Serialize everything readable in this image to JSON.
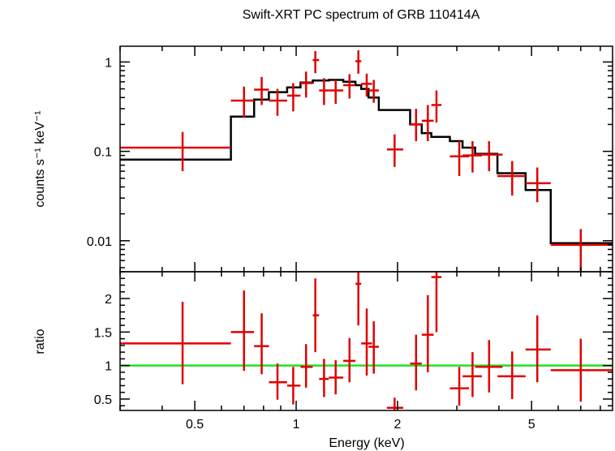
{
  "title": "Swift-XRT PC spectrum of GRB 110414A",
  "chart_data": [
    {
      "type": "scatter",
      "panel": "spectrum",
      "xlabel": "Energy (keV)",
      "ylabel": "counts s⁻¹ keV⁻¹",
      "xscale": "log",
      "yscale": "log",
      "xlim": [
        0.3,
        8.7
      ],
      "ylim": [
        0.0045,
        1.5
      ],
      "yticks": [
        {
          "value": 0.01,
          "label": "0.01"
        },
        {
          "value": 0.1,
          "label": "0.1"
        },
        {
          "value": 1,
          "label": "1"
        }
      ],
      "data_color": "#e00000",
      "model_color": "#000000",
      "series": [
        {
          "kind": "data",
          "points": [
            {
              "x0": 0.3,
              "x1": 0.64,
              "x": 0.46,
              "y": 0.11,
              "ylo": 0.06,
              "yhi": 0.165
            },
            {
              "x0": 0.64,
              "x1": 0.75,
              "x": 0.7,
              "y": 0.37,
              "ylo": 0.24,
              "yhi": 0.53
            },
            {
              "x0": 0.75,
              "x1": 0.83,
              "x": 0.79,
              "y": 0.49,
              "ylo": 0.33,
              "yhi": 0.68
            },
            {
              "x0": 0.83,
              "x1": 0.94,
              "x": 0.88,
              "y": 0.37,
              "ylo": 0.25,
              "yhi": 0.5
            },
            {
              "x0": 0.94,
              "x1": 1.03,
              "x": 0.98,
              "y": 0.42,
              "ylo": 0.28,
              "yhi": 0.58
            },
            {
              "x0": 1.03,
              "x1": 1.12,
              "x": 1.07,
              "y": 0.58,
              "ylo": 0.4,
              "yhi": 0.78
            },
            {
              "x0": 1.12,
              "x1": 1.17,
              "x": 1.14,
              "y": 1.05,
              "ylo": 0.75,
              "yhi": 1.32
            },
            {
              "x0": 1.17,
              "x1": 1.25,
              "x": 1.21,
              "y": 0.48,
              "ylo": 0.33,
              "yhi": 0.66
            },
            {
              "x0": 1.25,
              "x1": 1.38,
              "x": 1.31,
              "y": 0.48,
              "ylo": 0.34,
              "yhi": 0.63
            },
            {
              "x0": 1.38,
              "x1": 1.5,
              "x": 1.44,
              "y": 0.55,
              "ylo": 0.39,
              "yhi": 0.73
            },
            {
              "x0": 1.5,
              "x1": 1.56,
              "x": 1.53,
              "y": 1.02,
              "ylo": 0.74,
              "yhi": 1.35
            },
            {
              "x0": 1.56,
              "x1": 1.68,
              "x": 1.62,
              "y": 0.57,
              "ylo": 0.41,
              "yhi": 0.74
            },
            {
              "x0": 1.64,
              "x1": 1.76,
              "x": 1.7,
              "y": 0.48,
              "ylo": 0.35,
              "yhi": 0.63
            },
            {
              "x0": 1.86,
              "x1": 2.08,
              "x": 1.96,
              "y": 0.105,
              "ylo": 0.067,
              "yhi": 0.155
            },
            {
              "x0": 2.18,
              "x1": 2.36,
              "x": 2.27,
              "y": 0.2,
              "ylo": 0.13,
              "yhi": 0.3
            },
            {
              "x0": 2.36,
              "x1": 2.56,
              "x": 2.46,
              "y": 0.22,
              "ylo": 0.13,
              "yhi": 0.33
            },
            {
              "x0": 2.52,
              "x1": 2.7,
              "x": 2.61,
              "y": 0.33,
              "ylo": 0.21,
              "yhi": 0.48
            },
            {
              "x0": 2.86,
              "x1": 3.26,
              "x": 3.05,
              "y": 0.088,
              "ylo": 0.053,
              "yhi": 0.13
            },
            {
              "x0": 3.12,
              "x1": 3.56,
              "x": 3.34,
              "y": 0.09,
              "ylo": 0.058,
              "yhi": 0.13
            },
            {
              "x0": 3.4,
              "x1": 4.1,
              "x": 3.74,
              "y": 0.092,
              "ylo": 0.06,
              "yhi": 0.13
            },
            {
              "x0": 3.96,
              "x1": 4.8,
              "x": 4.38,
              "y": 0.053,
              "ylo": 0.032,
              "yhi": 0.078
            },
            {
              "x0": 4.8,
              "x1": 5.7,
              "x": 5.2,
              "y": 0.044,
              "ylo": 0.027,
              "yhi": 0.066
            },
            {
              "x0": 5.7,
              "x1": 8.7,
              "x": 7.0,
              "y": 0.009,
              "ylo": 0.0045,
              "yhi": 0.0135
            }
          ]
        },
        {
          "kind": "model",
          "steps": [
            {
              "x0": 0.3,
              "x1": 0.64,
              "y": 0.081
            },
            {
              "x0": 0.64,
              "x1": 0.75,
              "y": 0.245
            },
            {
              "x0": 0.75,
              "x1": 0.83,
              "y": 0.38
            },
            {
              "x0": 0.83,
              "x1": 0.94,
              "y": 0.46
            },
            {
              "x0": 0.94,
              "x1": 1.03,
              "y": 0.52
            },
            {
              "x0": 1.03,
              "x1": 1.12,
              "y": 0.59
            },
            {
              "x0": 1.12,
              "x1": 1.25,
              "y": 0.62
            },
            {
              "x0": 1.25,
              "x1": 1.38,
              "y": 0.63
            },
            {
              "x0": 1.38,
              "x1": 1.5,
              "y": 0.6
            },
            {
              "x0": 1.5,
              "x1": 1.56,
              "y": 0.55
            },
            {
              "x0": 1.56,
              "x1": 1.64,
              "y": 0.5
            },
            {
              "x0": 1.64,
              "x1": 1.76,
              "y": 0.4
            },
            {
              "x0": 1.76,
              "x1": 2.18,
              "y": 0.29
            },
            {
              "x0": 2.18,
              "x1": 2.36,
              "y": 0.2
            },
            {
              "x0": 2.36,
              "x1": 2.52,
              "y": 0.16
            },
            {
              "x0": 2.52,
              "x1": 2.86,
              "y": 0.145
            },
            {
              "x0": 2.86,
              "x1": 3.12,
              "y": 0.13
            },
            {
              "x0": 3.12,
              "x1": 3.4,
              "y": 0.11
            },
            {
              "x0": 3.4,
              "x1": 3.96,
              "y": 0.094
            },
            {
              "x0": 3.96,
              "x1": 4.8,
              "y": 0.057
            },
            {
              "x0": 4.8,
              "x1": 5.7,
              "y": 0.037
            },
            {
              "x0": 5.7,
              "x1": 8.7,
              "y": 0.0094
            }
          ]
        }
      ]
    },
    {
      "type": "scatter",
      "panel": "ratio",
      "xlabel": "Energy (keV)",
      "ylabel": "ratio",
      "xscale": "log",
      "xlim": [
        0.3,
        8.7
      ],
      "ylim": [
        0.33,
        2.4
      ],
      "xticks": [
        {
          "value": 0.5,
          "label": "0.5"
        },
        {
          "value": 1,
          "label": "1"
        },
        {
          "value": 2,
          "label": "2"
        },
        {
          "value": 5,
          "label": "5"
        }
      ],
      "yticks": [
        {
          "value": 0.5,
          "label": "0.5"
        },
        {
          "value": 1,
          "label": "1"
        },
        {
          "value": 1.5,
          "label": "1.5"
        },
        {
          "value": 2,
          "label": "2"
        }
      ],
      "data_color": "#e00000",
      "reference_line": {
        "y": 1,
        "color": "#22e022"
      },
      "points": [
        {
          "x0": 0.3,
          "x1": 0.64,
          "x": 0.46,
          "y": 1.33,
          "ylo": 0.72,
          "yhi": 1.95
        },
        {
          "x0": 0.64,
          "x1": 0.75,
          "x": 0.7,
          "y": 1.5,
          "ylo": 0.92,
          "yhi": 2.12
        },
        {
          "x0": 0.75,
          "x1": 0.83,
          "x": 0.79,
          "y": 1.29,
          "ylo": 0.87,
          "yhi": 1.78
        },
        {
          "x0": 0.83,
          "x1": 0.94,
          "x": 0.88,
          "y": 0.75,
          "ylo": 0.49,
          "yhi": 1.03
        },
        {
          "x0": 0.94,
          "x1": 1.03,
          "x": 0.98,
          "y": 0.7,
          "ylo": 0.42,
          "yhi": 0.98
        },
        {
          "x0": 1.03,
          "x1": 1.12,
          "x": 1.07,
          "y": 0.98,
          "ylo": 0.67,
          "yhi": 1.32
        },
        {
          "x0": 1.12,
          "x1": 1.17,
          "x": 1.14,
          "y": 1.75,
          "ylo": 1.2,
          "yhi": 2.3
        },
        {
          "x0": 1.17,
          "x1": 1.25,
          "x": 1.21,
          "y": 0.8,
          "ylo": 0.53,
          "yhi": 1.1
        },
        {
          "x0": 1.25,
          "x1": 1.38,
          "x": 1.31,
          "y": 0.82,
          "ylo": 0.57,
          "yhi": 1.08
        },
        {
          "x0": 1.38,
          "x1": 1.5,
          "x": 1.44,
          "y": 1.07,
          "ylo": 0.75,
          "yhi": 1.41
        },
        {
          "x0": 1.5,
          "x1": 1.56,
          "x": 1.53,
          "y": 2.22,
          "ylo": 1.6,
          "yhi": 2.4
        },
        {
          "x0": 1.56,
          "x1": 1.68,
          "x": 1.62,
          "y": 1.33,
          "ylo": 0.85,
          "yhi": 1.85
        },
        {
          "x0": 1.64,
          "x1": 1.76,
          "x": 1.7,
          "y": 1.28,
          "ylo": 0.88,
          "yhi": 1.66
        },
        {
          "x0": 1.86,
          "x1": 2.08,
          "x": 1.96,
          "y": 0.37,
          "ylo": 0.33,
          "yhi": 0.52
        },
        {
          "x0": 2.18,
          "x1": 2.36,
          "x": 2.27,
          "y": 1.03,
          "ylo": 0.63,
          "yhi": 1.46
        },
        {
          "x0": 2.36,
          "x1": 2.56,
          "x": 2.46,
          "y": 1.46,
          "ylo": 0.9,
          "yhi": 2.05
        },
        {
          "x0": 2.52,
          "x1": 2.7,
          "x": 2.61,
          "y": 2.32,
          "ylo": 1.5,
          "yhi": 2.4
        },
        {
          "x0": 2.86,
          "x1": 3.26,
          "x": 3.05,
          "y": 0.66,
          "ylo": 0.4,
          "yhi": 0.98
        },
        {
          "x0": 3.12,
          "x1": 3.56,
          "x": 3.34,
          "y": 0.84,
          "ylo": 0.53,
          "yhi": 1.2
        },
        {
          "x0": 3.4,
          "x1": 4.1,
          "x": 3.74,
          "y": 0.98,
          "ylo": 0.6,
          "yhi": 1.38
        },
        {
          "x0": 3.96,
          "x1": 4.8,
          "x": 4.38,
          "y": 0.84,
          "ylo": 0.5,
          "yhi": 1.21
        },
        {
          "x0": 4.8,
          "x1": 5.7,
          "x": 5.2,
          "y": 1.24,
          "ylo": 0.75,
          "yhi": 1.75
        },
        {
          "x0": 5.7,
          "x1": 8.7,
          "x": 7.0,
          "y": 0.93,
          "ylo": 0.46,
          "yhi": 1.4
        }
      ]
    }
  ]
}
